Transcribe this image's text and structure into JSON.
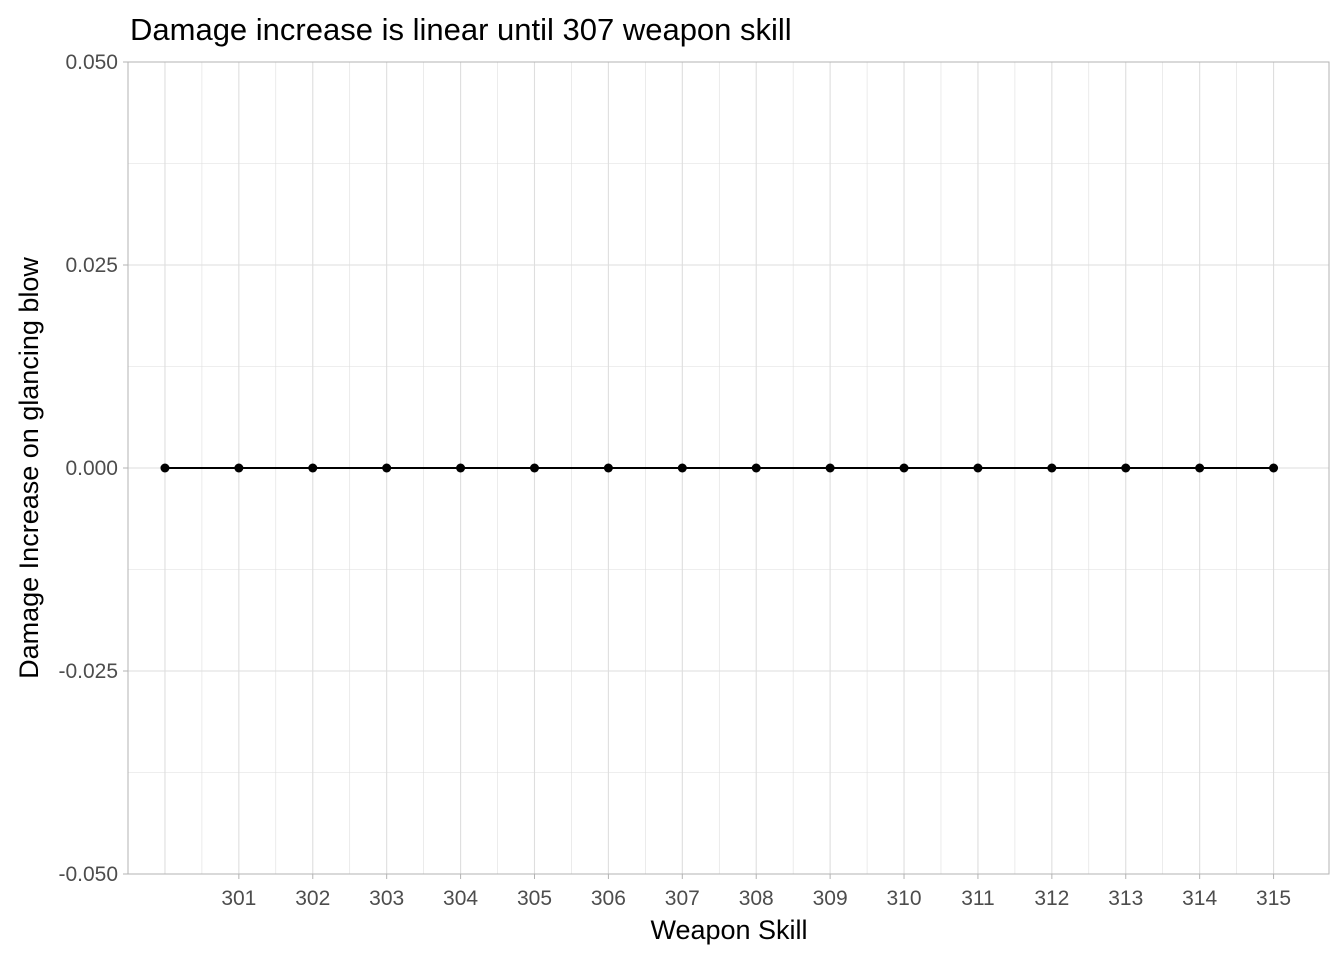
{
  "chart_data": {
    "type": "line",
    "title": "Damage increase is linear until 307 weapon skill",
    "xlabel": "Weapon Skill",
    "ylabel": "Damage Increase on glancing blow",
    "x": [
      300,
      301,
      302,
      303,
      304,
      305,
      306,
      307,
      308,
      309,
      310,
      311,
      312,
      313,
      314,
      315
    ],
    "series": [
      {
        "name": "damage_increase",
        "values": [
          0,
          0,
          0,
          0,
          0,
          0,
          0,
          0,
          0,
          0,
          0,
          0,
          0,
          0,
          0,
          0
        ]
      }
    ],
    "xlim": [
      299.5,
      315.75
    ],
    "ylim": [
      -0.05,
      0.05
    ],
    "x_ticks": [
      301,
      302,
      303,
      304,
      305,
      306,
      307,
      308,
      309,
      310,
      311,
      312,
      313,
      314,
      315
    ],
    "x_tick_labels": [
      "301",
      "302",
      "303",
      "304",
      "305",
      "306",
      "307",
      "308",
      "309",
      "310",
      "311",
      "312",
      "313",
      "314",
      "315"
    ],
    "y_ticks": [
      -0.05,
      -0.025,
      0,
      0.025,
      0.05
    ],
    "y_tick_labels": [
      "-0.050",
      "-0.025",
      "0.000",
      "0.025",
      "0.050"
    ],
    "grid": true,
    "colors": {
      "line": "#000000",
      "point": "#000000",
      "grid": "#dedede",
      "panel_border": "#b3b3b3",
      "tick_label": "#4d4d4d"
    }
  }
}
